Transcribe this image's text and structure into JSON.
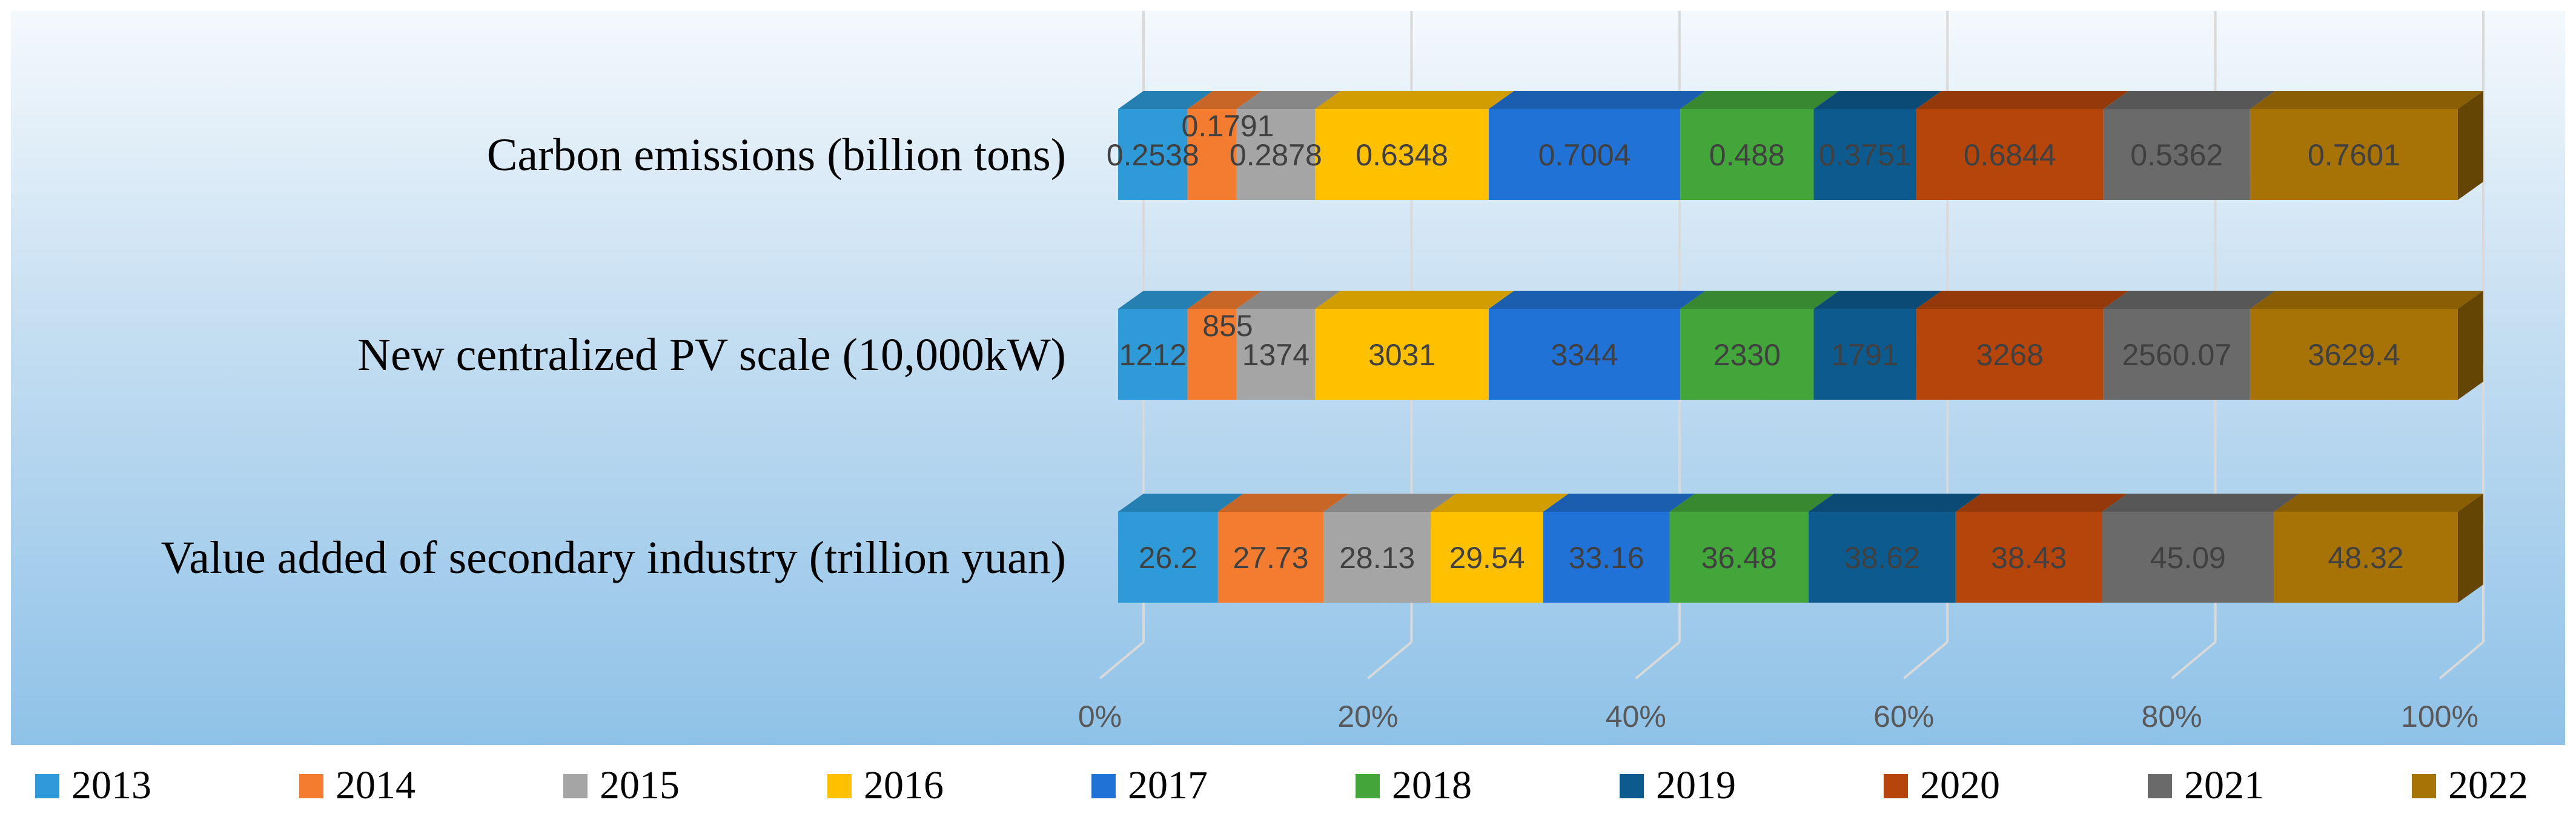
{
  "chart_data": {
    "type": "bar",
    "orientation": "horizontal",
    "stacking": "percent",
    "style": "3d",
    "title": "",
    "xlabel": "",
    "ylabel": "",
    "xlim": [
      0,
      100
    ],
    "x_ticks": [
      "0%",
      "20%",
      "40%",
      "60%",
      "80%",
      "100%"
    ],
    "grid": true,
    "legend_position": "bottom",
    "categories": [
      "Carbon emissions (billion tons)",
      "New centralized PV scale (10,000kW)",
      "Value added of secondary industry (trillion yuan)"
    ],
    "series": [
      {
        "name": "2013",
        "color": "#2E9BD8",
        "values": [
          0.2538,
          1212,
          26.2
        ],
        "labels": [
          "0.2538",
          "1212",
          "26.2"
        ]
      },
      {
        "name": "2014",
        "color": "#F47C30",
        "values": [
          0.1791,
          855,
          27.73
        ],
        "labels": [
          "0.1791",
          "855",
          "27.73"
        ]
      },
      {
        "name": "2015",
        "color": "#A5A5A5",
        "values": [
          0.2878,
          1374,
          28.13
        ],
        "labels": [
          "0.2878",
          "1374",
          "28.13"
        ]
      },
      {
        "name": "2016",
        "color": "#FFC000",
        "values": [
          0.6348,
          3031,
          29.54
        ],
        "labels": [
          "0.6348",
          "3031",
          "29.54"
        ]
      },
      {
        "name": "2017",
        "color": "#2172D6",
        "values": [
          0.7004,
          3344,
          33.16
        ],
        "labels": [
          "0.7004",
          "3344",
          "33.16"
        ]
      },
      {
        "name": "2018",
        "color": "#43A63A",
        "values": [
          0.488,
          2330,
          36.48
        ],
        "labels": [
          "0.488",
          "2330",
          "36.48"
        ]
      },
      {
        "name": "2019",
        "color": "#0D5A8E",
        "values": [
          0.3751,
          1791,
          38.62
        ],
        "labels": [
          "0.3751",
          "1791",
          "38.62"
        ]
      },
      {
        "name": "2020",
        "color": "#B5450B",
        "values": [
          0.6844,
          3268,
          38.43
        ],
        "labels": [
          "0.6844",
          "3268",
          "38.43"
        ]
      },
      {
        "name": "2021",
        "color": "#6A6A6A",
        "values": [
          0.5362,
          2560.07,
          45.09
        ],
        "labels": [
          "0.5362",
          "2560.07",
          "45.09"
        ]
      },
      {
        "name": "2022",
        "color": "#A77306",
        "values": [
          0.7601,
          3629.4,
          48.32
        ],
        "labels": [
          "0.7601",
          "3629.4",
          "48.32"
        ]
      }
    ]
  }
}
